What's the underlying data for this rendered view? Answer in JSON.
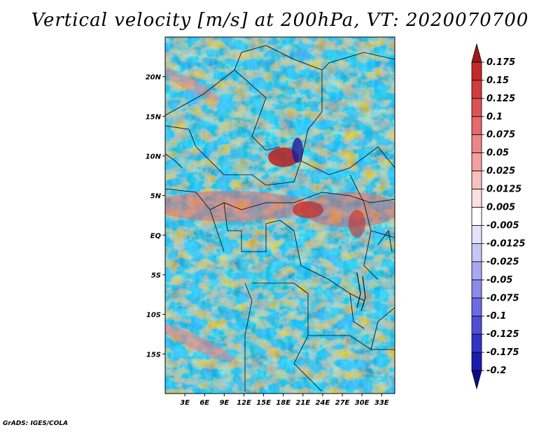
{
  "title": "Vertical velocity [m/s] at 200hPa, VT: 2020070700",
  "credit": "GrADS: IGES/COLA",
  "map": {
    "lon_labels": [
      "3E",
      "6E",
      "9E",
      "12E",
      "15E",
      "18E",
      "21E",
      "24E",
      "27E",
      "30E",
      "33E"
    ],
    "lat_labels": [
      "20N",
      "15N",
      "10N",
      "5N",
      "EQ",
      "5S",
      "10S",
      "15S"
    ],
    "lon_values": [
      3,
      6,
      9,
      12,
      15,
      18,
      21,
      24,
      27,
      30,
      33
    ],
    "lat_values": [
      20,
      15,
      10,
      5,
      0,
      -5,
      -10,
      -15
    ],
    "lon_range": [
      0,
      35
    ],
    "lat_range": [
      -20,
      25
    ]
  },
  "colorbar": {
    "labels": [
      "0.175",
      "0.15",
      "0.125",
      "0.1",
      "0.075",
      "0.05",
      "0.025",
      "0.0125",
      "0.005",
      "-0.005",
      "-0.0125",
      "-0.025",
      "-0.05",
      "-0.075",
      "-0.1",
      "-0.125",
      "-0.175",
      "-0.2"
    ],
    "colors": [
      "#a01a1a",
      "#c42a2a",
      "#d23d3d",
      "#dd5252",
      "#e66a6a",
      "#ee8585",
      "#f4a0a0",
      "#f9c0c0",
      "#fde0e0",
      "#ffffff",
      "#e2e2fc",
      "#c6c6f8",
      "#a8a8f2",
      "#8a8aeb",
      "#6c6ce2",
      "#4f4fd6",
      "#3333c6",
      "#1c1caf",
      "#0c0c8a"
    ]
  },
  "chart_data": {
    "type": "heatmap",
    "title": "Vertical velocity [m/s] at 200hPa, VT: 2020070700",
    "xlabel": "",
    "ylabel": "",
    "x_ticks": [
      "3E",
      "6E",
      "9E",
      "12E",
      "15E",
      "18E",
      "21E",
      "24E",
      "27E",
      "30E",
      "33E"
    ],
    "y_ticks": [
      "20N",
      "15N",
      "10N",
      "5N",
      "EQ",
      "5S",
      "10S",
      "15S"
    ],
    "xlim": [
      0,
      35
    ],
    "ylim": [
      -20,
      25
    ],
    "color_levels": [
      -0.2,
      -0.175,
      -0.125,
      -0.1,
      -0.075,
      -0.05,
      -0.025,
      -0.0125,
      -0.005,
      0.005,
      0.0125,
      0.025,
      0.05,
      0.075,
      0.1,
      0.125,
      0.15,
      0.175
    ]
  }
}
